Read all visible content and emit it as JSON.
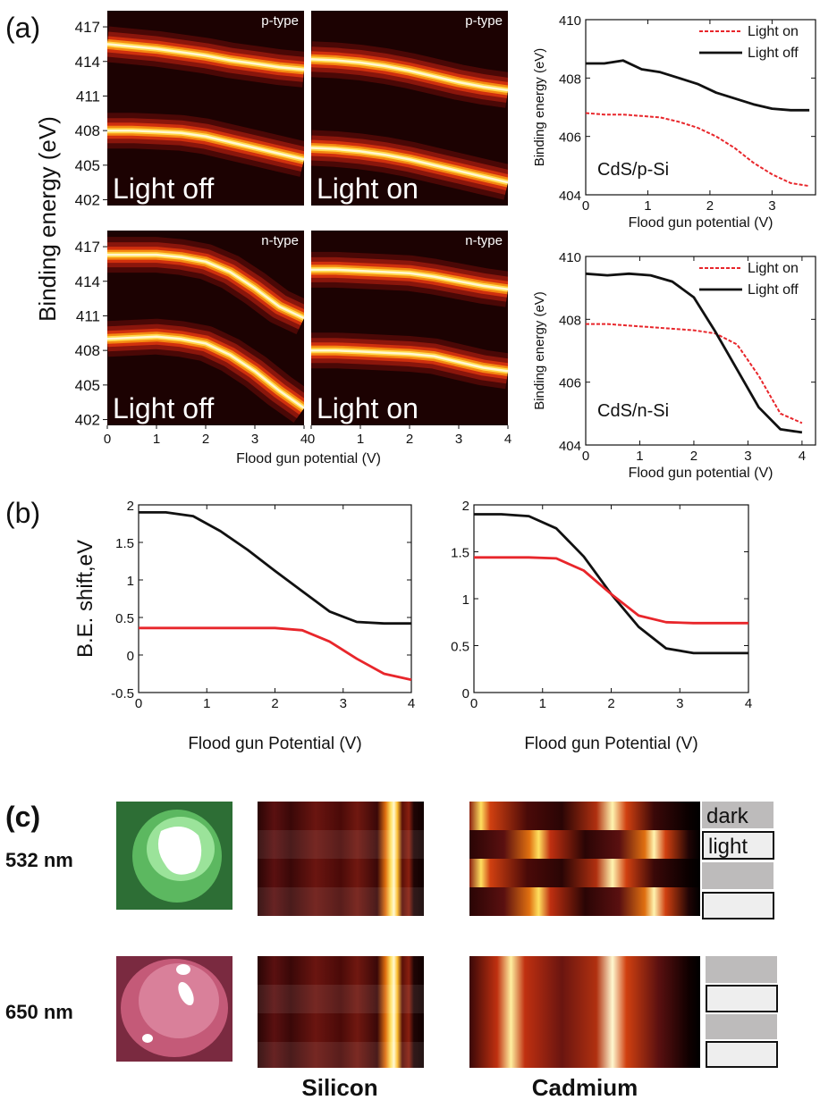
{
  "figure_labels": [
    "(a)",
    "(b)",
    "(c)"
  ],
  "chart_data": [
    {
      "type": "heatmap",
      "corner_label": "p-type",
      "label": "Light off",
      "y_label": "Binding energy (eV)",
      "xlim": [
        0,
        4
      ],
      "ylim": [
        401.5,
        418.4
      ],
      "yticks": [
        402,
        405,
        408,
        411,
        414,
        417
      ],
      "x": [
        0,
        0.5,
        1,
        1.5,
        2,
        2.5,
        3,
        3.5,
        4
      ],
      "series": [
        {
          "values": [
            408,
            408,
            407.9,
            407.8,
            407.5,
            407,
            406.5,
            406,
            405.5
          ]
        },
        {
          "values": [
            415.5,
            415.3,
            415.1,
            414.8,
            414.5,
            414.1,
            413.8,
            413.5,
            413.3
          ]
        }
      ]
    },
    {
      "type": "heatmap",
      "corner_label": "p-type",
      "label": "Light on",
      "xlim": [
        0,
        4
      ],
      "ylim": [
        401.5,
        418.4
      ],
      "x": [
        0,
        0.5,
        1,
        1.5,
        2,
        2.5,
        3,
        3.5,
        4
      ],
      "series": [
        {
          "values": [
            406.5,
            406.4,
            406.2,
            405.9,
            405.5,
            405,
            404.5,
            404,
            403.5
          ]
        },
        {
          "values": [
            414.2,
            414.1,
            413.9,
            413.6,
            413.2,
            412.7,
            412.2,
            411.8,
            411.5
          ]
        }
      ]
    },
    {
      "type": "heatmap",
      "corner_label": "n-type",
      "label": "Light off",
      "x_label": "Flood gun potential (V)",
      "xlim": [
        0,
        4
      ],
      "ylim": [
        401.5,
        418.4
      ],
      "yticks": [
        402,
        405,
        408,
        411,
        414,
        417
      ],
      "xticks": [
        0,
        1,
        2,
        3,
        4
      ],
      "x": [
        0,
        0.5,
        1,
        1.5,
        2,
        2.5,
        3,
        3.5,
        4
      ],
      "series": [
        {
          "values": [
            409,
            409.1,
            409.2,
            409,
            408.6,
            407.6,
            406.2,
            404.5,
            403
          ]
        },
        {
          "values": [
            416.3,
            416.3,
            416.3,
            416.1,
            415.7,
            414.8,
            413.4,
            411.8,
            410.8
          ]
        }
      ]
    },
    {
      "type": "heatmap",
      "corner_label": "n-type",
      "label": "Light on",
      "xlim": [
        0,
        4
      ],
      "ylim": [
        401.5,
        418.4
      ],
      "xticks": [
        0,
        1,
        2,
        3,
        4
      ],
      "x": [
        0,
        0.5,
        1,
        1.5,
        2,
        2.5,
        3,
        3.5,
        4
      ],
      "series": [
        {
          "values": [
            408,
            408,
            407.9,
            407.8,
            407.7,
            407.5,
            407,
            406.5,
            406.2
          ]
        },
        {
          "values": [
            415,
            415,
            414.9,
            414.8,
            414.7,
            414.4,
            414,
            413.6,
            413.3
          ]
        }
      ]
    },
    {
      "type": "line",
      "annotation": "CdS/p-Si",
      "x_label": "Flood gun potential (V)",
      "y_label": "Binding energy (eV)",
      "xlim": [
        0,
        3.7
      ],
      "ylim": [
        404,
        410
      ],
      "xticks": [
        0,
        1,
        2,
        3
      ],
      "yticks": [
        404,
        406,
        408,
        410
      ],
      "legend": "upper right",
      "x": [
        0,
        0.3,
        0.6,
        0.9,
        1.2,
        1.5,
        1.8,
        2.1,
        2.4,
        2.7,
        3.0,
        3.3,
        3.6
      ],
      "series": [
        {
          "name": "Light on",
          "color": "#e8262b",
          "style": "dashed",
          "values": [
            406.8,
            406.75,
            406.75,
            406.7,
            406.65,
            406.5,
            406.3,
            406.0,
            405.6,
            405.1,
            404.7,
            404.4,
            404.3
          ]
        },
        {
          "name": "Light off",
          "color": "#111111",
          "style": "solid",
          "values": [
            408.5,
            408.5,
            408.6,
            408.3,
            408.2,
            408.0,
            407.8,
            407.5,
            407.3,
            407.1,
            406.95,
            406.9,
            406.9
          ]
        }
      ]
    },
    {
      "type": "line",
      "annotation": "CdS/n-Si",
      "x_label": "Flood gun potential (V)",
      "y_label": "Binding energy (eV)",
      "xlim": [
        0,
        4.25
      ],
      "ylim": [
        404,
        410
      ],
      "xticks": [
        0,
        1,
        2,
        3,
        4
      ],
      "yticks": [
        404,
        406,
        408,
        410
      ],
      "legend": "upper right",
      "x": [
        0,
        0.4,
        0.8,
        1.2,
        1.6,
        2.0,
        2.4,
        2.8,
        3.2,
        3.6,
        4.0
      ],
      "series": [
        {
          "name": "Light on",
          "color": "#e8262b",
          "style": "dashed",
          "values": [
            407.85,
            407.85,
            407.8,
            407.75,
            407.7,
            407.65,
            407.55,
            407.2,
            406.2,
            405.0,
            404.7
          ]
        },
        {
          "name": "Light off",
          "color": "#111111",
          "style": "solid",
          "values": [
            409.45,
            409.4,
            409.45,
            409.4,
            409.2,
            408.7,
            407.6,
            406.4,
            405.2,
            404.5,
            404.4
          ]
        }
      ]
    },
    {
      "type": "line",
      "x_label": "Flood gun Potential (V)",
      "y_label": "B.E. shift,eV",
      "xlim": [
        0,
        4
      ],
      "ylim": [
        -0.5,
        2
      ],
      "xticks": [
        0,
        1,
        2,
        3,
        4
      ],
      "yticks": [
        -0.5,
        0,
        0.5,
        1,
        1.5,
        2
      ],
      "x": [
        0,
        0.4,
        0.8,
        1.2,
        1.6,
        2.0,
        2.4,
        2.8,
        3.2,
        3.6,
        4.0
      ],
      "series": [
        {
          "color": "#111111",
          "style": "solid",
          "values": [
            1.9,
            1.9,
            1.85,
            1.65,
            1.4,
            1.12,
            0.85,
            0.58,
            0.44,
            0.42,
            0.42
          ]
        },
        {
          "color": "#e8262b",
          "style": "solid",
          "values": [
            0.36,
            0.36,
            0.36,
            0.36,
            0.36,
            0.36,
            0.33,
            0.18,
            -0.05,
            -0.25,
            -0.33
          ]
        }
      ]
    },
    {
      "type": "line",
      "x_label": "Flood gun Potential (V)",
      "xlim": [
        0,
        4
      ],
      "ylim": [
        0,
        2
      ],
      "xticks": [
        0,
        1,
        2,
        3,
        4
      ],
      "yticks": [
        0,
        0.5,
        1,
        1.5,
        2
      ],
      "x": [
        0,
        0.4,
        0.8,
        1.2,
        1.6,
        2.0,
        2.4,
        2.8,
        3.2,
        3.6,
        4.0
      ],
      "series": [
        {
          "color": "#111111",
          "style": "solid",
          "values": [
            1.9,
            1.9,
            1.88,
            1.75,
            1.45,
            1.05,
            0.7,
            0.47,
            0.42,
            0.42,
            0.42
          ]
        },
        {
          "color": "#e8262b",
          "style": "solid",
          "values": [
            1.44,
            1.44,
            1.44,
            1.43,
            1.3,
            1.05,
            0.82,
            0.75,
            0.74,
            0.74,
            0.74
          ]
        }
      ]
    }
  ],
  "panel_c": {
    "rows": [
      "532 nm",
      "650 nm"
    ],
    "states": [
      "dark",
      "light"
    ],
    "columns": [
      "Silicon",
      "Cadmium"
    ]
  }
}
